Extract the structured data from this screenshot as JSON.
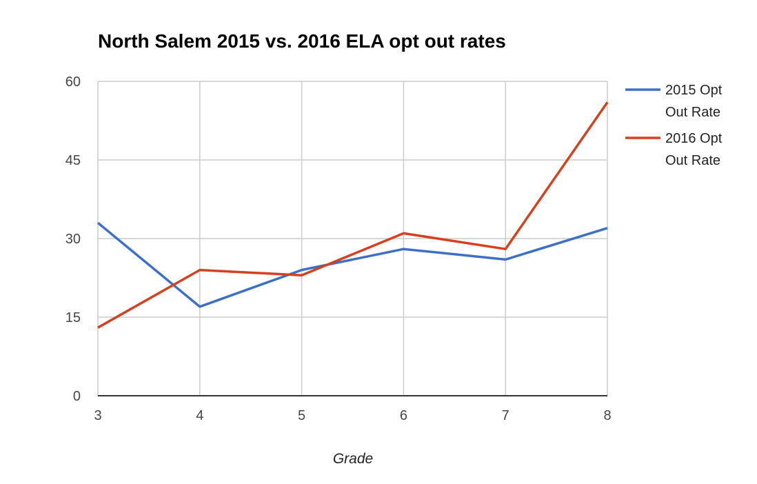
{
  "chart_data": {
    "type": "line",
    "title": "North Salem 2015 vs. 2016 ELA opt out rates",
    "xlabel": "Grade",
    "ylabel": "",
    "x": [
      3,
      4,
      5,
      6,
      7,
      8
    ],
    "x_tick_labels": [
      "3",
      "4",
      "5",
      "6",
      "7",
      "8"
    ],
    "y_tick_labels": [
      "0",
      "15",
      "30",
      "45",
      "60"
    ],
    "ylim": [
      0,
      60
    ],
    "grid": true,
    "legend_position": "right",
    "series": [
      {
        "name": "2015 Opt Out Rate",
        "legend_lines": [
          "2015 Opt",
          "Out Rate"
        ],
        "color": "#3c6fc8",
        "values": [
          33,
          17,
          24,
          28,
          26,
          32
        ]
      },
      {
        "name": "2016 Opt Out Rate",
        "legend_lines": [
          "2016 Opt",
          "Out Rate"
        ],
        "color": "#d5401f",
        "values": [
          13,
          24,
          23,
          31,
          28,
          56
        ]
      }
    ]
  }
}
